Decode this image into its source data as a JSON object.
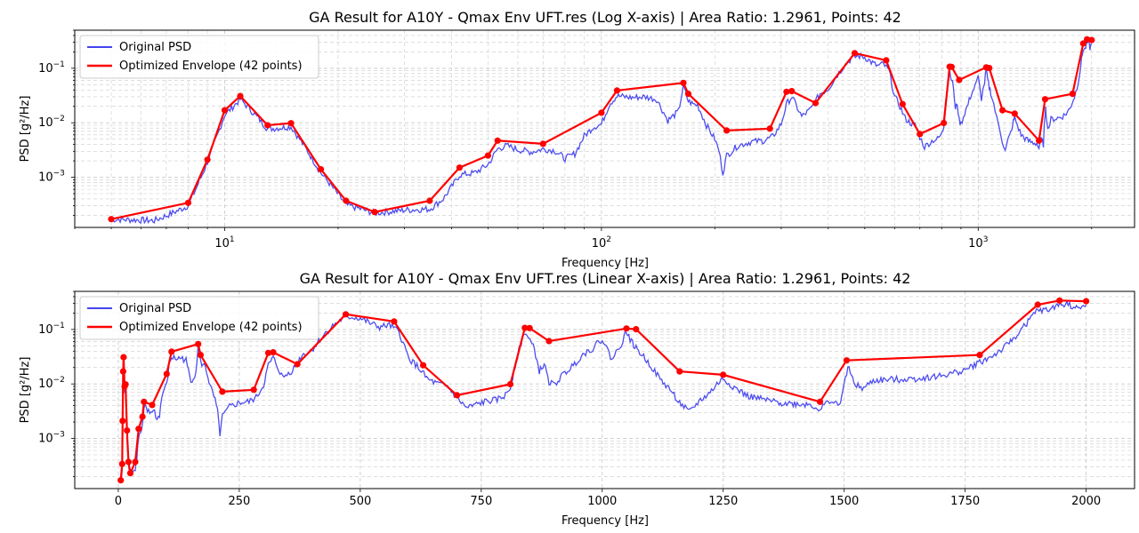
{
  "colors": {
    "psd": "#4444ee",
    "envelope": "#ff0000",
    "grid": "#cccccc"
  },
  "chart_data": [
    {
      "type": "line",
      "title": "GA Result for A10Y - Qmax Env UFT.res (Log X-axis) | Area Ratio: 1.2961, Points: 42",
      "xlabel": "Frequency [Hz]",
      "ylabel": "PSD [g²/Hz]",
      "xscale": "log",
      "yscale": "log",
      "xlim": [
        4,
        2600
      ],
      "ylim": [
        0.00012,
        0.5
      ],
      "x_ticks": [
        {
          "value": 10,
          "base": "10",
          "exp": "1"
        },
        {
          "value": 100,
          "base": "10",
          "exp": "2"
        },
        {
          "value": 1000,
          "base": "10",
          "exp": "3"
        }
      ],
      "y_ticks": [
        {
          "value": 0.001,
          "base": "10",
          "exp": "−3"
        },
        {
          "value": 0.01,
          "base": "10",
          "exp": "−2"
        },
        {
          "value": 0.1,
          "base": "10",
          "exp": "−1"
        }
      ],
      "grid": true,
      "legend_position": "top-left"
    },
    {
      "type": "line",
      "title": "GA Result for A10Y - Qmax Env UFT.res (Linear X-axis) | Area Ratio: 1.2961, Points: 42",
      "xlabel": "Frequency [Hz]",
      "ylabel": "PSD [g²/Hz]",
      "xscale": "linear",
      "yscale": "log",
      "xlim": [
        -90,
        2100
      ],
      "ylim": [
        0.00012,
        0.5
      ],
      "x_ticks": [
        {
          "value": 0,
          "label": "0"
        },
        {
          "value": 250,
          "label": "250"
        },
        {
          "value": 500,
          "label": "500"
        },
        {
          "value": 750,
          "label": "750"
        },
        {
          "value": 1000,
          "label": "1000"
        },
        {
          "value": 1250,
          "label": "1250"
        },
        {
          "value": 1500,
          "label": "1500"
        },
        {
          "value": 1750,
          "label": "1750"
        },
        {
          "value": 2000,
          "label": "2000"
        }
      ],
      "y_ticks": [
        {
          "value": 0.001,
          "base": "10",
          "exp": "−3"
        },
        {
          "value": 0.01,
          "base": "10",
          "exp": "−2"
        },
        {
          "value": 0.1,
          "base": "10",
          "exp": "−1"
        }
      ],
      "grid": true,
      "legend_position": "top-left"
    }
  ],
  "legend": [
    {
      "label": "Original PSD",
      "color": "#4444ee"
    },
    {
      "label": "Optimized Envelope (42 points)",
      "color": "#ff0000"
    }
  ],
  "series": {
    "envelope": {
      "name": "Optimized Envelope (42 points)",
      "x": [
        5,
        8,
        9,
        10,
        11,
        13,
        15,
        18,
        21,
        25,
        35,
        42,
        50,
        53,
        70,
        100,
        110,
        165,
        170,
        215,
        280,
        310,
        320,
        370,
        470,
        570,
        630,
        700,
        810,
        840,
        850,
        890,
        1050,
        1070,
        1160,
        1250,
        1450,
        1505,
        1780,
        1900,
        1945,
        2000
      ],
      "y": [
        0.00017,
        0.00034,
        0.0021,
        0.017,
        0.031,
        0.009,
        0.0098,
        0.0014,
        0.00037,
        0.00023,
        0.00037,
        0.0015,
        0.0025,
        0.0047,
        0.0041,
        0.0153,
        0.039,
        0.054,
        0.034,
        0.0072,
        0.0078,
        0.037,
        0.038,
        0.023,
        0.19,
        0.14,
        0.022,
        0.0062,
        0.0099,
        0.107,
        0.106,
        0.061,
        0.104,
        0.101,
        0.017,
        0.0147,
        0.0047,
        0.027,
        0.034,
        0.285,
        0.34,
        0.33
      ]
    },
    "psd": {
      "name": "Original PSD",
      "x": [
        5,
        6.5,
        8,
        9,
        10,
        11,
        13,
        15,
        18,
        21,
        25,
        30,
        35,
        38,
        42,
        46,
        50,
        53,
        56,
        60,
        65,
        70,
        75,
        80,
        85,
        90,
        95,
        100,
        105,
        110,
        120,
        130,
        140,
        150,
        160,
        165,
        170,
        175,
        180,
        190,
        200,
        205,
        210,
        215,
        230,
        250,
        270,
        285,
        300,
        310,
        320,
        340,
        360,
        380,
        400,
        420,
        440,
        460,
        480,
        500,
        520,
        540,
        560,
        580,
        600,
        620,
        640,
        660,
        680,
        700,
        720,
        740,
        760,
        780,
        800,
        810,
        820,
        830,
        840,
        850,
        860,
        870,
        880,
        890,
        900,
        920,
        940,
        960,
        980,
        1000,
        1020,
        1040,
        1050,
        1060,
        1070,
        1080,
        1100,
        1120,
        1140,
        1160,
        1180,
        1200,
        1220,
        1240,
        1250,
        1270,
        1300,
        1330,
        1360,
        1400,
        1430,
        1450,
        1470,
        1490,
        1500,
        1510,
        1520,
        1540,
        1560,
        1600,
        1650,
        1700,
        1750,
        1780,
        1800,
        1830,
        1860,
        1880,
        1900,
        1920,
        1940,
        1960,
        1980,
        2000
      ],
      "y": [
        0.00017,
        0.00016,
        0.0003,
        0.0019,
        0.014,
        0.027,
        0.0077,
        0.0085,
        0.0012,
        0.00031,
        0.00022,
        0.00025,
        0.00026,
        0.0004,
        0.0011,
        0.0012,
        0.0017,
        0.0033,
        0.0038,
        0.0032,
        0.0029,
        0.0033,
        0.0031,
        0.0022,
        0.0027,
        0.0057,
        0.0083,
        0.0094,
        0.022,
        0.031,
        0.029,
        0.03,
        0.027,
        0.011,
        0.016,
        0.047,
        0.025,
        0.022,
        0.021,
        0.009,
        0.005,
        0.0031,
        0.0012,
        0.0025,
        0.0038,
        0.0045,
        0.0047,
        0.0056,
        0.0095,
        0.022,
        0.03,
        0.013,
        0.018,
        0.034,
        0.042,
        0.071,
        0.11,
        0.15,
        0.17,
        0.16,
        0.13,
        0.11,
        0.12,
        0.09,
        0.03,
        0.02,
        0.012,
        0.01,
        0.009,
        0.0055,
        0.0036,
        0.0042,
        0.0048,
        0.005,
        0.0062,
        0.0085,
        0.022,
        0.048,
        0.091,
        0.064,
        0.043,
        0.017,
        0.023,
        0.011,
        0.0095,
        0.015,
        0.022,
        0.035,
        0.045,
        0.068,
        0.028,
        0.056,
        0.093,
        0.06,
        0.045,
        0.036,
        0.022,
        0.012,
        0.008,
        0.0045,
        0.003,
        0.0048,
        0.0066,
        0.0105,
        0.0125,
        0.009,
        0.006,
        0.0052,
        0.0046,
        0.0043,
        0.0042,
        0.0034,
        0.005,
        0.004,
        0.0098,
        0.022,
        0.0098,
        0.0082,
        0.0115,
        0.012,
        0.0125,
        0.014,
        0.018,
        0.025,
        0.03,
        0.045,
        0.085,
        0.14,
        0.23,
        0.22,
        0.28,
        0.3,
        0.24,
        0.28
      ]
    }
  }
}
